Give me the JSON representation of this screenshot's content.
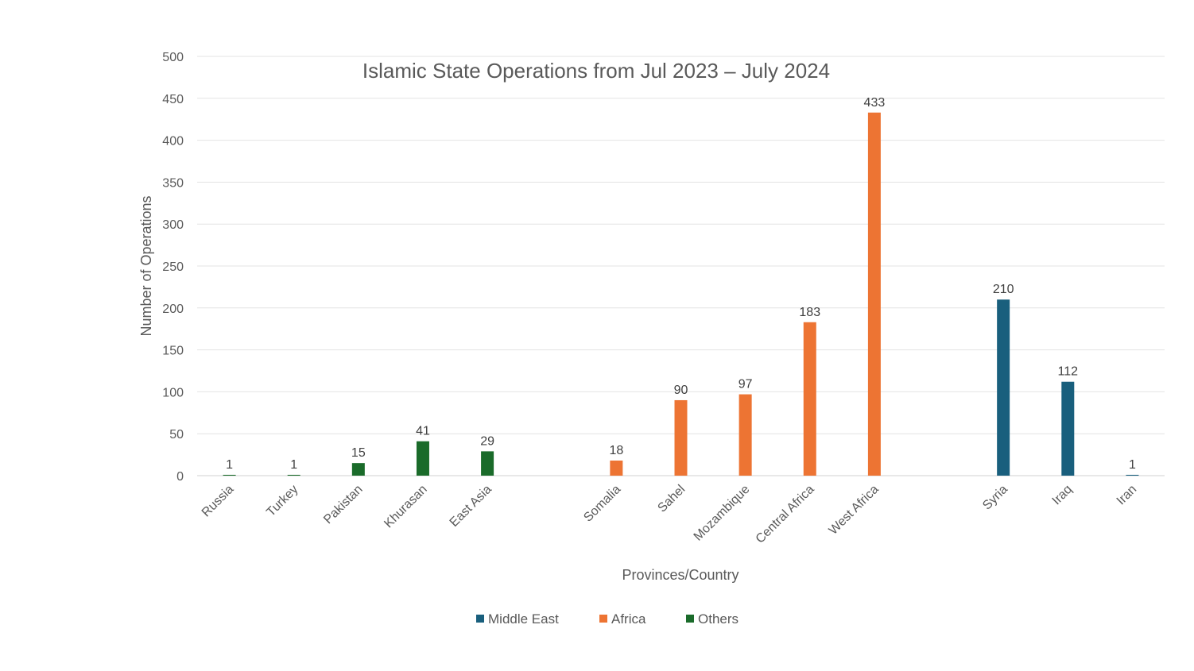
{
  "chart_data": {
    "type": "bar",
    "title": "Islamic State Operations from Jul 2023 – July 2024",
    "xlabel": "Provinces/Country",
    "ylabel": "Number of Operations",
    "ylim": [
      0,
      500
    ],
    "yticks": [
      0,
      50,
      100,
      150,
      200,
      250,
      300,
      350,
      400,
      450,
      500
    ],
    "grid": true,
    "legend_position": "bottom",
    "series": [
      {
        "name": "Others",
        "color": "#1a6b2a",
        "categories": [
          "Russia",
          "Turkey",
          "Pakistan",
          "Khurasan",
          "East Asia"
        ],
        "values": [
          1,
          1,
          15,
          41,
          29
        ]
      },
      {
        "name": "Africa",
        "color": "#ed7433",
        "categories": [
          "Somalia",
          "Sahel",
          "Mozambique",
          "Central Africa",
          "West Africa"
        ],
        "values": [
          18,
          90,
          97,
          183,
          433
        ]
      },
      {
        "name": "Middle East",
        "color": "#195f7d",
        "categories": [
          "Syria",
          "Iraq",
          "Iran"
        ],
        "values": [
          210,
          112,
          1
        ]
      }
    ],
    "legend": [
      "Middle East",
      "Africa",
      "Others"
    ]
  }
}
